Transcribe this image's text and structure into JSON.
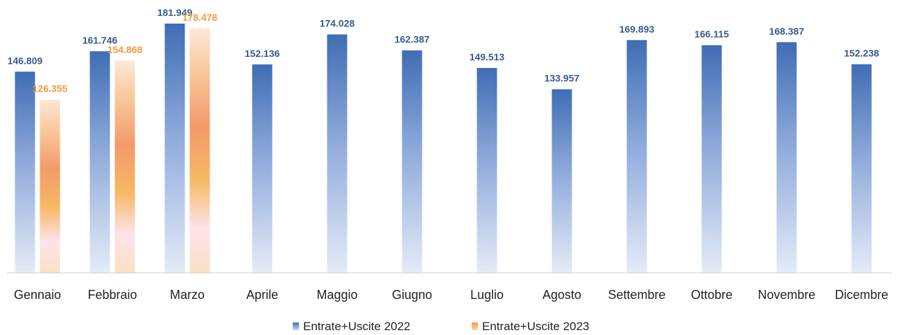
{
  "chart_data": {
    "type": "bar",
    "categories": [
      "Gennaio",
      "Febbraio",
      "Marzo",
      "Aprile",
      "Maggio",
      "Giugno",
      "Luglio",
      "Agosto",
      "Settembre",
      "Ottobre",
      "Novembre",
      "Dicembre"
    ],
    "series": [
      {
        "name": "Entrate+Uscite 2022",
        "values": [
          146809,
          161746,
          181949,
          152136,
          174028,
          162387,
          149513,
          133957,
          169893,
          166115,
          168387,
          152238
        ],
        "labels": [
          "146.809",
          "161.746",
          "181.949",
          "152.136",
          "174.028",
          "162.387",
          "149.513",
          "133.957",
          "169.893",
          "166.115",
          "168.387",
          "152.238"
        ],
        "color": "#4a76b8"
      },
      {
        "name": "Entrate+Uscite 2023",
        "values": [
          126355,
          154868,
          178478,
          null,
          null,
          null,
          null,
          null,
          null,
          null,
          null,
          null
        ],
        "labels": [
          "126.355",
          "154.868",
          "178.478",
          "",
          "",
          "",
          "",
          "",
          "",
          "",
          "",
          ""
        ],
        "color": "#f29a3c"
      }
    ],
    "title": "",
    "xlabel": "",
    "ylabel": "",
    "ylim": [
      0,
      200000
    ],
    "grid": false,
    "legend": "bottom"
  }
}
